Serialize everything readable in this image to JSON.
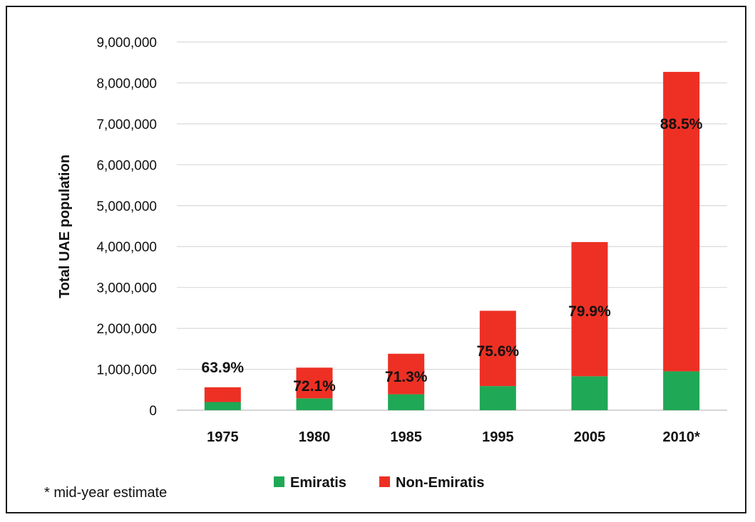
{
  "chart_data": {
    "type": "bar",
    "stacked": true,
    "title": "",
    "xlabel": "",
    "ylabel": "Total UAE population",
    "ylim": [
      0,
      9000000
    ],
    "yticks": [
      "0",
      "1,000,000",
      "2,000,000",
      "3,000,000",
      "4,000,000",
      "5,000,000",
      "6,000,000",
      "7,000,000",
      "8,000,000",
      "9,000,000"
    ],
    "ytick_values": [
      0,
      1000000,
      2000000,
      3000000,
      4000000,
      5000000,
      6000000,
      7000000,
      8000000,
      9000000
    ],
    "categories": [
      "1975",
      "1980",
      "1985",
      "1995",
      "2005",
      "2010*"
    ],
    "series": [
      {
        "name": "Emiratis",
        "color": "#1fa855",
        "values": [
          200000,
          290000,
          390000,
          590000,
          830000,
          950000
        ]
      },
      {
        "name": "Non-Emiratis",
        "color": "#ee3024",
        "values": [
          360000,
          750000,
          990000,
          1840000,
          3280000,
          7320000
        ]
      }
    ],
    "data_labels": [
      "63.9%",
      "72.1%",
      "71.3%",
      "75.6%",
      "79.9%",
      "88.5%"
    ],
    "grid": true,
    "legend": "bottom",
    "note": "* mid-year estimate"
  }
}
